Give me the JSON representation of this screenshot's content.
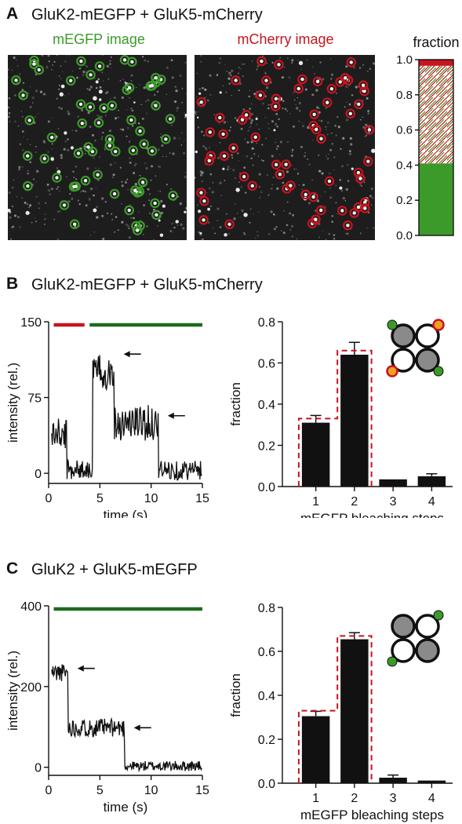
{
  "colors": {
    "green": "#3c9a2a",
    "dark_green": "#1f6a1f",
    "red": "#c8141e",
    "orange": "#f0a020",
    "gray_subunit": "#8a8a8a",
    "bar": "#111111"
  },
  "panel_a": {
    "letter": "A",
    "title": "GluK2-mEGFP + GluK5-mCherry",
    "left_image_label": "mEGFP image",
    "right_image_label": "mCherry image",
    "chart_data": {
      "type": "bar",
      "title": "fraction",
      "ylim": [
        0,
        1
      ],
      "yticks": [
        "0.0",
        "0.2",
        "0.4",
        "0.6",
        "0.8",
        "1.0"
      ],
      "segments": [
        {
          "fill": "solid-green",
          "from": 0.0,
          "to": 0.41
        },
        {
          "fill": "hatched-red-green",
          "from": 0.41,
          "to": 0.965
        },
        {
          "fill": "solid-red",
          "from": 0.965,
          "to": 1.0
        }
      ]
    }
  },
  "panel_b": {
    "letter": "B",
    "title": "GluK2-mEGFP + GluK5-mCherry",
    "trace": {
      "type": "line",
      "xlabel": "time (s)",
      "ylabel": "intensity (rel.)",
      "xlim": [
        0,
        15
      ],
      "ylim": [
        -10,
        150
      ],
      "xticks": [
        "0",
        "5",
        "10",
        "15"
      ],
      "yticks": [
        "0",
        "75",
        "150"
      ],
      "red_bar": [
        0.5,
        3.5
      ],
      "green_bar": [
        4,
        15
      ],
      "arrows_y": [
        118,
        57
      ],
      "levels": [
        {
          "t0": 0.3,
          "t1": 1.8,
          "y": 38
        },
        {
          "t0": 1.8,
          "t1": 4.2,
          "y": 4
        },
        {
          "t0": 4.3,
          "t1": 6.4,
          "y": 100
        },
        {
          "t0": 6.4,
          "t1": 10.7,
          "y": 50
        },
        {
          "t0": 10.7,
          "t1": 15,
          "y": 3
        }
      ]
    },
    "chart_data": {
      "type": "bar",
      "categories": [
        "1",
        "2",
        "3",
        "4"
      ],
      "values": [
        0.31,
        0.64,
        0.035,
        0.05
      ],
      "errors": [
        0.035,
        0.06,
        0.0,
        0.012
      ],
      "predicted": [
        0.33,
        0.66,
        0.0,
        0.0
      ],
      "xlabel": "mEGFP bleaching steps",
      "ylabel": "fraction",
      "ylim": [
        0,
        0.8
      ],
      "yticks": [
        "0.0",
        "0.2",
        "0.4",
        "0.6",
        "0.8"
      ],
      "schematic": "green-red-labeled-tetramer"
    }
  },
  "panel_c": {
    "letter": "C",
    "title": "GluK2 + GluK5-mEGFP",
    "trace": {
      "type": "line",
      "xlabel": "time (s)",
      "ylabel": "intensity (rel.)",
      "xlim": [
        0,
        15
      ],
      "ylim": [
        -20,
        400
      ],
      "xticks": [
        "0",
        "5",
        "10",
        "15"
      ],
      "yticks": [
        "0",
        "200",
        "400"
      ],
      "green_bar": [
        0.5,
        15
      ],
      "arrows_y": [
        245,
        98
      ],
      "levels": [
        {
          "t0": 0.3,
          "t1": 1.9,
          "y": 235
        },
        {
          "t0": 1.9,
          "t1": 7.4,
          "y": 98
        },
        {
          "t0": 7.4,
          "t1": 15,
          "y": 3
        }
      ]
    },
    "chart_data": {
      "type": "bar",
      "categories": [
        "1",
        "2",
        "3",
        "4"
      ],
      "values": [
        0.305,
        0.655,
        0.025,
        0.012
      ],
      "errors": [
        0.022,
        0.03,
        0.012,
        0.0
      ],
      "predicted": [
        0.33,
        0.67,
        0.0,
        0.0
      ],
      "xlabel": "mEGFP bleaching steps",
      "ylabel": "fraction",
      "ylim": [
        0,
        0.8
      ],
      "yticks": [
        "0.0",
        "0.2",
        "0.4",
        "0.6",
        "0.8"
      ],
      "schematic": "green-labeled-tetramer"
    }
  }
}
